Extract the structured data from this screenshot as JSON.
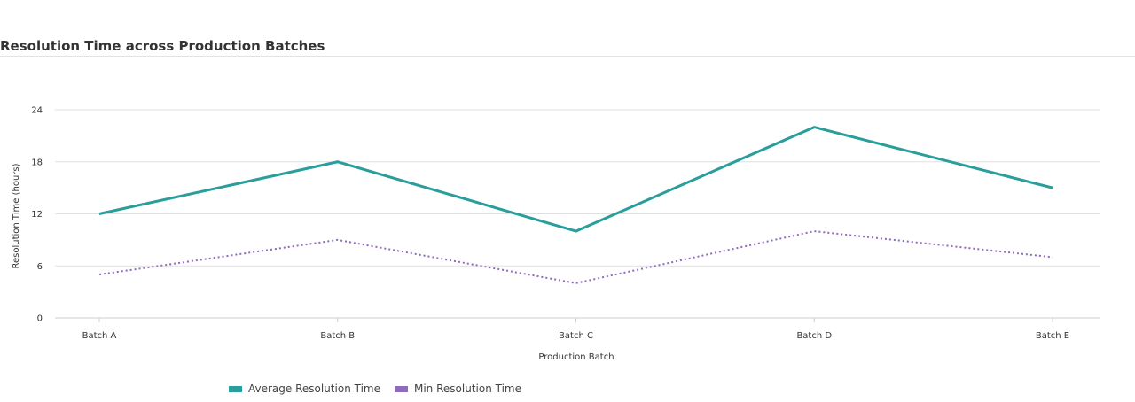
{
  "header": {
    "title": "Resolution Time across Production Batches"
  },
  "chart_data": {
    "type": "line",
    "title": "Resolution Time across Production Batches",
    "xlabel": "Production Batch",
    "ylabel": "Resolution Time (hours)",
    "categories": [
      "Batch A",
      "Batch B",
      "Batch C",
      "Batch D",
      "Batch E"
    ],
    "ylim": [
      0,
      24
    ],
    "yticks": [
      "0",
      "6",
      "12",
      "18",
      "24"
    ],
    "grid": true,
    "legend_position": "bottom-left",
    "series": [
      {
        "name": "Average Resolution Time",
        "values": [
          12,
          18,
          10,
          22,
          15
        ],
        "color": "#2a9d9d",
        "style": "solid"
      },
      {
        "name": "Min Resolution Time",
        "values": [
          5,
          9,
          4,
          10,
          7
        ],
        "color": "#8e6bbf",
        "style": "dotted"
      }
    ]
  }
}
